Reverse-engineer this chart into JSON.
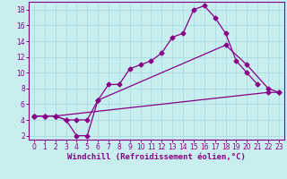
{
  "xlabel": "Windchill (Refroidissement éolien,°C)",
  "bg_color": "#c8eef0",
  "line_color": "#880088",
  "grid_color": "#aadddd",
  "xlim_min": -0.5,
  "xlim_max": 23.5,
  "ylim_min": 1.5,
  "ylim_max": 19.0,
  "xticks": [
    0,
    1,
    2,
    3,
    4,
    5,
    6,
    7,
    8,
    9,
    10,
    11,
    12,
    13,
    14,
    15,
    16,
    17,
    18,
    19,
    20,
    21,
    22,
    23
  ],
  "yticks": [
    2,
    4,
    6,
    8,
    10,
    12,
    14,
    16,
    18
  ],
  "line1_x": [
    0,
    1,
    2,
    3,
    4,
    5,
    6,
    7,
    8,
    9,
    10,
    11,
    12,
    13,
    14,
    15,
    16,
    17,
    18,
    19,
    20,
    21
  ],
  "line1_y": [
    4.5,
    4.5,
    4.5,
    4.0,
    2.0,
    2.0,
    6.5,
    8.5,
    8.5,
    10.5,
    11.0,
    11.5,
    12.5,
    14.5,
    15.0,
    18.0,
    18.5,
    17.0,
    15.0,
    11.5,
    10.0,
    8.5
  ],
  "line2_x": [
    0,
    1,
    2,
    3,
    4,
    5,
    6,
    18,
    20,
    22,
    23
  ],
  "line2_y": [
    4.5,
    4.5,
    4.5,
    4.0,
    4.0,
    4.0,
    6.5,
    13.5,
    11.0,
    8.0,
    7.5
  ],
  "line3_x": [
    0,
    1,
    2,
    22,
    23
  ],
  "line3_y": [
    4.5,
    4.5,
    4.5,
    7.5,
    7.5
  ],
  "xlabel_fontsize": 6.5,
  "tick_fontsize": 5.5
}
